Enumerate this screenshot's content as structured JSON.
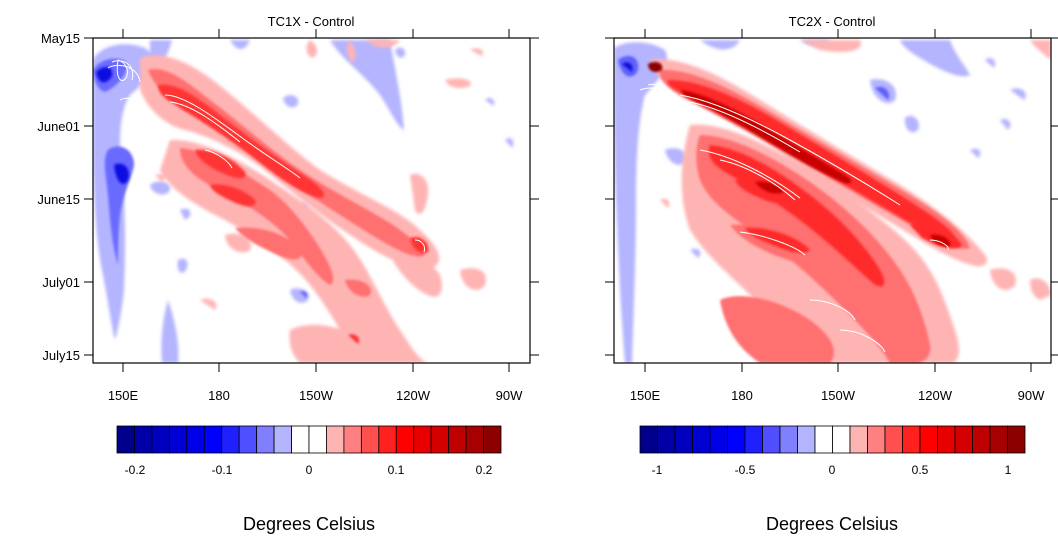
{
  "chart_data": [
    {
      "type": "heatmap",
      "subtype": "filled-contour hovmoller",
      "title": "TC1X - Control",
      "x_ticks": [
        "150E",
        "180",
        "150W",
        "120W",
        "90W"
      ],
      "y_ticks": [
        "May15",
        "June01",
        "June15",
        "July01",
        "July15"
      ],
      "colorbar": {
        "label": "Degrees Celsius",
        "ticks": [
          "-0.2",
          "-0.1",
          "0",
          "0.1",
          "0.2"
        ],
        "range": [
          -0.225,
          0.225
        ],
        "levels": 22
      },
      "colors": [
        "#00008c",
        "#0000a6",
        "#0000be",
        "#0000d4",
        "#0000e8",
        "#0000ff",
        "#2020ff",
        "#4f4fff",
        "#8080ff",
        "#b4b4ff",
        "#ffffff",
        "#ffffff",
        "#ffb4b4",
        "#ff8080",
        "#ff4f4f",
        "#ff2020",
        "#ff0000",
        "#e80000",
        "#d40000",
        "#be0000",
        "#a60000",
        "#8c0000"
      ]
    },
    {
      "type": "heatmap",
      "subtype": "filled-contour hovmoller",
      "title": "TC2X - Control",
      "x_ticks": [
        "150E",
        "180",
        "150W",
        "120W",
        "90W"
      ],
      "y_ticks": [
        "May15",
        "June01",
        "June15",
        "July01",
        "July15"
      ],
      "colorbar": {
        "label": "Degrees Celsius",
        "ticks": [
          "-1",
          "-0.5",
          "0",
          "0.5",
          "1"
        ],
        "range": [
          -1.125,
          1.125
        ],
        "levels": 22
      },
      "colors": [
        "#00008c",
        "#0000a6",
        "#0000be",
        "#0000d4",
        "#0000e8",
        "#0000ff",
        "#2020ff",
        "#4f4fff",
        "#8080ff",
        "#b4b4ff",
        "#ffffff",
        "#ffffff",
        "#ffb4b4",
        "#ff8080",
        "#ff4f4f",
        "#ff2020",
        "#ff0000",
        "#e80000",
        "#d40000",
        "#be0000",
        "#a60000",
        "#8c0000"
      ]
    }
  ]
}
